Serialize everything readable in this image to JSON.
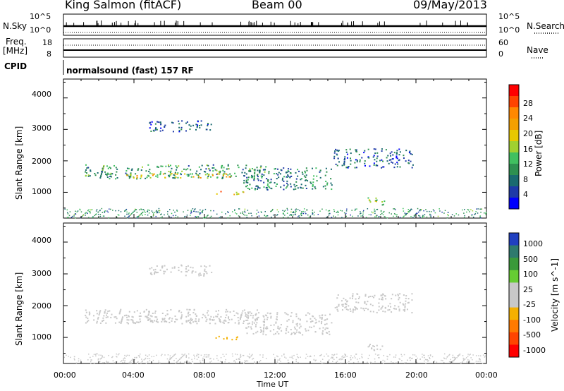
{
  "header": {
    "station": "King Salmon (fitACF)",
    "beam": "Beam 00",
    "date": "09/May/2013"
  },
  "strips": {
    "nsky_label": "N.Sky",
    "nsearch_label": "N.Search",
    "top_tick": "10^5",
    "bottom_tick": "10^0",
    "freq_label_line1": "Freq.",
    "freq_label_line2": "[MHz]",
    "freq_ticks": [
      "18",
      "8"
    ],
    "nave_label": "Nave",
    "nave_ticks": [
      "60",
      "0"
    ],
    "cpid_label": "CPID",
    "cpid_value": "normalsound (fast) 157 RF"
  },
  "panels": {
    "ylabel": "Slant Range [km]",
    "xlabel": "Time UT",
    "x_ticks": [
      "00:00",
      "04:00",
      "08:00",
      "12:00",
      "16:00",
      "20:00",
      "00:00"
    ],
    "y_ticks": [
      "4000",
      "3000",
      "2000",
      "1000"
    ]
  },
  "power_scale": {
    "label": "Power [dB]",
    "ticks": [
      "28",
      "24",
      "20",
      "16",
      "12",
      "8",
      "4"
    ],
    "colors": [
      "#ff0000",
      "#ff4400",
      "#ff8800",
      "#f4a000",
      "#e8c800",
      "#a0d030",
      "#40c060",
      "#2e9050",
      "#1a6a70",
      "#1e3aa8",
      "#0000ff"
    ]
  },
  "velocity_scale": {
    "label": "Velocity [m s^-1]",
    "ticks": [
      "1000",
      "500",
      "100",
      "25",
      "-25",
      "-100",
      "-500",
      "-1000"
    ],
    "colors": [
      "#2040c0",
      "#2e7a6e",
      "#3a9a3a",
      "#66cc33",
      "#c8c8c8",
      "#c8c8c8",
      "#f4b000",
      "#ff7a00",
      "#ff4400",
      "#ff0000"
    ]
  },
  "chart_data": {
    "type": "heatmap",
    "time_range_ut_hours": [
      0,
      24
    ],
    "slant_range_km": [
      180,
      4600
    ],
    "power_db_range": [
      0,
      30
    ],
    "velocity_ms_range": [
      -1000,
      1000
    ],
    "echo_regions": [
      {
        "t0": 1.2,
        "t1": 11.5,
        "r0": 1450,
        "r1": 1900,
        "power_db": 10,
        "velocity_ms": -20
      },
      {
        "t0": 3.5,
        "t1": 9.6,
        "r0": 1480,
        "r1": 1620,
        "power_db": 18,
        "velocity_ms": -20
      },
      {
        "t0": 4.8,
        "t1": 8.4,
        "r0": 2950,
        "r1": 3300,
        "power_db": 6,
        "velocity_ms": 30
      },
      {
        "t0": 8.4,
        "t1": 10.2,
        "r0": 950,
        "r1": 1050,
        "power_db": 20,
        "velocity_ms": -250
      },
      {
        "t0": 10.2,
        "t1": 15.2,
        "r0": 1100,
        "r1": 1800,
        "power_db": 8,
        "velocity_ms": -120
      },
      {
        "t0": 15.3,
        "t1": 19.8,
        "r0": 1800,
        "r1": 2400,
        "power_db": 6,
        "velocity_ms": 40
      },
      {
        "t0": 17.2,
        "t1": 18.2,
        "r0": 600,
        "r1": 850,
        "power_db": 14,
        "velocity_ms": 15
      }
    ]
  }
}
